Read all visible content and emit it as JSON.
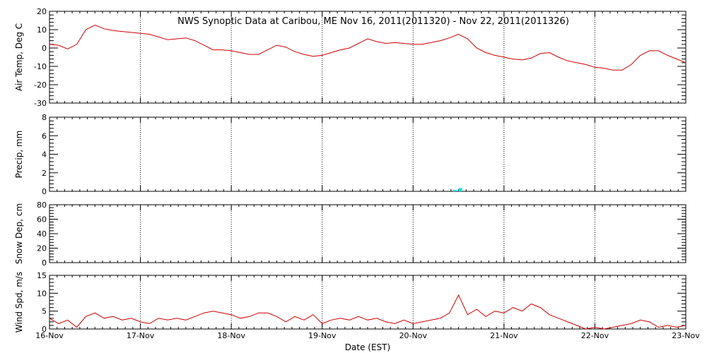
{
  "chart_data": {
    "type": "line",
    "title": "NWS Synoptic Data at Caribou, ME   Nov 16, 2011(2011320) - Nov 22, 2011(2011326)",
    "xlabel": "Date (EST)",
    "x_tick_labels": [
      "16-Nov",
      "17-Nov",
      "18-Nov",
      "19-Nov",
      "20-Nov",
      "21-Nov",
      "22-Nov",
      "23-Nov"
    ],
    "xlim": [
      0,
      7
    ],
    "x_unit": "days since 16-Nov 00:00 EST",
    "grid": "dotted vertical lines at each day",
    "panels": [
      {
        "id": "air-temp",
        "ylabel": "Air Temp, Deg C",
        "ylim": [
          -30,
          20
        ],
        "yticks": [
          "20",
          "10",
          "0",
          "-10",
          "-20",
          "-30"
        ],
        "color": "#cc0000",
        "x": [
          0,
          0.1,
          0.2,
          0.3,
          0.4,
          0.5,
          0.6,
          0.7,
          0.8,
          0.9,
          1.0,
          1.1,
          1.2,
          1.3,
          1.4,
          1.5,
          1.6,
          1.7,
          1.8,
          1.9,
          2.0,
          2.1,
          2.2,
          2.3,
          2.4,
          2.5,
          2.6,
          2.7,
          2.8,
          2.9,
          3.0,
          3.1,
          3.2,
          3.3,
          3.4,
          3.5,
          3.6,
          3.7,
          3.8,
          3.9,
          4.0,
          4.1,
          4.2,
          4.3,
          4.4,
          4.5,
          4.6,
          4.7,
          4.8,
          4.9,
          5.0,
          5.1,
          5.2,
          5.3,
          5.4,
          5.5,
          5.6,
          5.7,
          5.8,
          5.9,
          6.0,
          6.1,
          6.2,
          6.3,
          6.4,
          6.5,
          6.6,
          6.7,
          6.8,
          6.9,
          7.0
        ],
        "values": [
          2,
          1.5,
          -0.5,
          2,
          10,
          12.5,
          10.5,
          9.5,
          9,
          8.5,
          8,
          7.5,
          6,
          4.5,
          5,
          5.5,
          4,
          1.5,
          -1,
          -1,
          -1.5,
          -2.5,
          -3.5,
          -3.5,
          -1,
          1.5,
          0.5,
          -2,
          -3.5,
          -4.5,
          -4,
          -2.5,
          -1,
          0,
          2.5,
          5,
          3.5,
          2.5,
          3,
          2.5,
          2,
          2,
          3,
          4,
          5.5,
          7.5,
          5,
          0,
          -2.5,
          -4,
          -5,
          -6,
          -6.5,
          -5.5,
          -3,
          -2.5,
          -5,
          -7,
          -8,
          -9,
          -10.5,
          -11,
          -12,
          -12,
          -9,
          -4,
          -1.5,
          -1.5,
          -4,
          -6,
          -8
        ]
      },
      {
        "id": "precip",
        "ylabel": "Precip, mm",
        "ylim": [
          0,
          8
        ],
        "yticks": [
          "8",
          "6",
          "4",
          "2",
          "0"
        ],
        "color": "#00e5e5",
        "bars": [
          {
            "x": 4.46,
            "value": 0.1
          },
          {
            "x": 4.52,
            "value": 0.35
          }
        ]
      },
      {
        "id": "snow-depth",
        "ylabel": "Snow Dep, cm",
        "ylim": [
          0,
          80
        ],
        "yticks": [
          "80",
          "60",
          "40",
          "20",
          "0"
        ],
        "values": []
      },
      {
        "id": "wind-speed",
        "ylabel": "Wind Spd, m/s",
        "ylim": [
          0,
          15
        ],
        "yticks": [
          "15",
          "10",
          "5",
          "0"
        ],
        "color": "#cc0000",
        "x": [
          0,
          0.1,
          0.2,
          0.3,
          0.4,
          0.5,
          0.6,
          0.7,
          0.8,
          0.9,
          1.0,
          1.1,
          1.2,
          1.3,
          1.4,
          1.5,
          1.6,
          1.7,
          1.8,
          1.9,
          2.0,
          2.1,
          2.2,
          2.3,
          2.4,
          2.5,
          2.6,
          2.7,
          2.8,
          2.9,
          3.0,
          3.1,
          3.2,
          3.3,
          3.4,
          3.5,
          3.6,
          3.7,
          3.8,
          3.9,
          4.0,
          4.1,
          4.2,
          4.3,
          4.4,
          4.5,
          4.6,
          4.7,
          4.8,
          4.9,
          5.0,
          5.1,
          5.2,
          5.3,
          5.4,
          5.5,
          5.6,
          5.7,
          5.8,
          5.9,
          6.0,
          6.1,
          6.2,
          6.3,
          6.4,
          6.5,
          6.6,
          6.7,
          6.8,
          6.9,
          7.0
        ],
        "values": [
          3,
          1.5,
          2.5,
          0.5,
          3.5,
          4.5,
          3,
          3.5,
          2.5,
          3,
          2,
          1.5,
          3,
          2.5,
          3,
          2.5,
          3.5,
          4.5,
          5,
          4.5,
          4,
          3,
          3.5,
          4.5,
          4.5,
          3.5,
          2,
          3.5,
          2.5,
          4,
          1.5,
          2.5,
          3,
          2.5,
          3.5,
          2.5,
          3,
          2,
          1.5,
          2.5,
          1.5,
          2,
          2.5,
          3,
          4.5,
          9.5,
          4,
          5.5,
          3.5,
          5,
          4.5,
          6,
          5,
          7,
          6,
          4,
          3,
          2,
          1,
          0,
          0.5,
          0,
          0.5,
          1,
          1.5,
          2.5,
          2,
          0.5,
          1,
          0.5,
          1
        ]
      }
    ]
  }
}
